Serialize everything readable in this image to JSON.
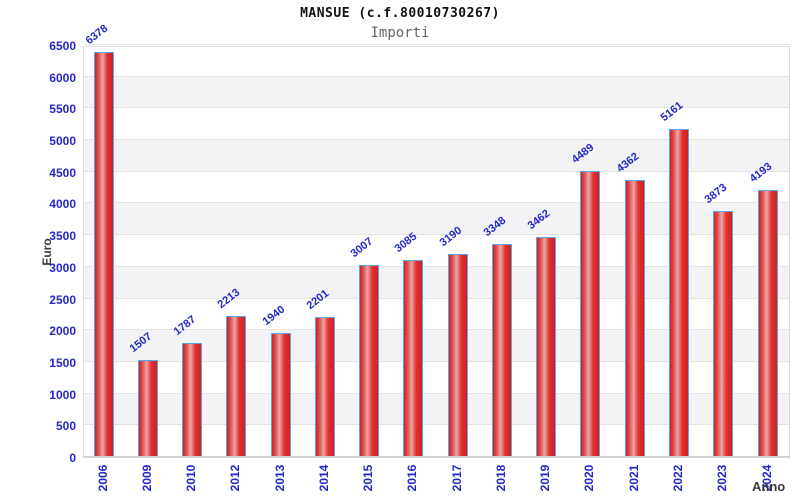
{
  "header": {
    "title": "MANSUE (c.f.80010730267)",
    "subtitle": "Importi"
  },
  "chart_data": {
    "type": "bar",
    "title": "MANSUE (c.f.80010730267)",
    "subtitle": "Importi",
    "xlabel": "Anno",
    "ylabel": "Euro",
    "categories": [
      "2006",
      "2009",
      "2010",
      "2012",
      "2013",
      "2014",
      "2015",
      "2016",
      "2017",
      "2018",
      "2019",
      "2020",
      "2021",
      "2022",
      "2023",
      "2024"
    ],
    "values": [
      6378,
      1507,
      1787,
      2213,
      1940,
      2201,
      3007,
      3085,
      3190,
      3348,
      3462,
      4489,
      4362,
      5161,
      3873,
      4193
    ],
    "ylim": [
      0,
      6500
    ],
    "ytick_step": 500,
    "grid": true,
    "legend": "none",
    "bands_alternating": true,
    "colors": {
      "bar_fill": "#e23030",
      "bar_highlight": "#eaa8a8",
      "bar_border": "#5aa7e8",
      "tick_text": "#2428c8",
      "axis_title_text": "#3a3a3a",
      "band_fill": "#f3f3f5",
      "gridline": "#e3e3e3",
      "title_text": "#111111",
      "subtitle_text": "#666666"
    }
  }
}
